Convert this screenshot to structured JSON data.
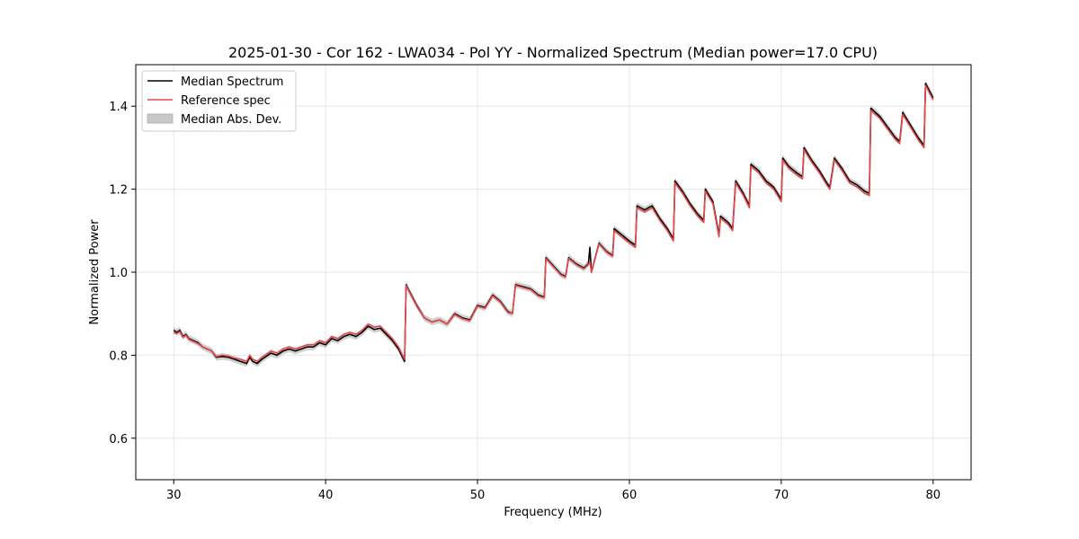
{
  "chart_data": {
    "type": "line",
    "title": "2025-01-30 - Cor 162 - LWA034 - Pol YY - Normalized Spectrum (Median power=17.0 CPU)",
    "xlabel": "Frequency (MHz)",
    "ylabel": "Normalized Power",
    "xlim": [
      27.5,
      82.5
    ],
    "ylim": [
      0.5,
      1.5
    ],
    "xticks": [
      30,
      40,
      50,
      60,
      70,
      80
    ],
    "yticks": [
      0.6,
      0.8,
      1.0,
      1.2,
      1.4
    ],
    "xtick_labels": [
      "30",
      "40",
      "50",
      "60",
      "70",
      "80"
    ],
    "ytick_labels": [
      "0.6",
      "0.8",
      "1.0",
      "1.2",
      "1.4"
    ],
    "grid": true,
    "legend_position": "top-left",
    "band_halfwidth": 0.008,
    "series": [
      {
        "name": "Median Spectrum",
        "color": "#000000",
        "x": [
          30.0,
          30.2,
          30.4,
          30.6,
          30.8,
          31.0,
          31.3,
          31.6,
          31.9,
          32.2,
          32.5,
          32.8,
          33.2,
          33.6,
          34.0,
          34.4,
          34.8,
          35.0,
          35.2,
          35.5,
          35.8,
          36.0,
          36.4,
          36.8,
          37.2,
          37.6,
          38.0,
          38.4,
          38.8,
          39.2,
          39.6,
          40.0,
          40.4,
          40.8,
          41.2,
          41.6,
          42.0,
          42.4,
          42.8,
          43.2,
          43.6,
          44.0,
          44.4,
          44.8,
          45.2,
          45.3,
          45.5,
          46.0,
          46.5,
          47.0,
          47.5,
          48.0,
          48.5,
          49.0,
          49.5,
          50.0,
          50.5,
          51.0,
          51.5,
          52.0,
          52.3,
          52.5,
          53.0,
          53.5,
          54.0,
          54.4,
          54.5,
          55.0,
          55.5,
          55.8,
          56.0,
          56.5,
          57.0,
          57.3,
          57.4,
          57.5,
          58.0,
          58.5,
          58.9,
          59.0,
          59.5,
          60.0,
          60.4,
          60.5,
          61.0,
          61.5,
          62.0,
          62.5,
          62.9,
          63.0,
          63.5,
          64.0,
          64.5,
          64.9,
          65.0,
          65.5,
          65.9,
          66.0,
          66.5,
          66.8,
          67.0,
          67.5,
          67.9,
          68.0,
          68.5,
          69.0,
          69.5,
          70.0,
          70.1,
          70.5,
          71.0,
          71.4,
          71.5,
          72.0,
          72.5,
          73.0,
          73.2,
          73.5,
          74.0,
          74.5,
          75.0,
          75.5,
          75.8,
          75.9,
          76.5,
          77.0,
          77.5,
          77.8,
          78.0,
          78.5,
          79.0,
          79.4,
          79.5,
          80.0
        ],
        "y": [
          0.86,
          0.855,
          0.86,
          0.845,
          0.85,
          0.84,
          0.835,
          0.83,
          0.82,
          0.815,
          0.81,
          0.795,
          0.797,
          0.795,
          0.79,
          0.785,
          0.78,
          0.795,
          0.785,
          0.78,
          0.79,
          0.795,
          0.805,
          0.8,
          0.81,
          0.815,
          0.81,
          0.815,
          0.82,
          0.82,
          0.83,
          0.825,
          0.84,
          0.835,
          0.845,
          0.85,
          0.845,
          0.855,
          0.87,
          0.862,
          0.865,
          0.85,
          0.835,
          0.815,
          0.785,
          0.97,
          0.955,
          0.92,
          0.89,
          0.88,
          0.885,
          0.875,
          0.9,
          0.89,
          0.885,
          0.92,
          0.915,
          0.945,
          0.93,
          0.905,
          0.9,
          0.97,
          0.965,
          0.96,
          0.945,
          0.94,
          1.035,
          1.015,
          0.995,
          0.99,
          1.035,
          1.02,
          1.01,
          1.02,
          1.06,
          1.0,
          1.07,
          1.05,
          1.04,
          1.105,
          1.09,
          1.075,
          1.065,
          1.16,
          1.15,
          1.16,
          1.13,
          1.105,
          1.08,
          1.22,
          1.195,
          1.165,
          1.14,
          1.125,
          1.2,
          1.17,
          1.09,
          1.135,
          1.12,
          1.105,
          1.22,
          1.19,
          1.16,
          1.26,
          1.245,
          1.22,
          1.205,
          1.175,
          1.275,
          1.255,
          1.24,
          1.23,
          1.3,
          1.27,
          1.245,
          1.215,
          1.205,
          1.275,
          1.25,
          1.22,
          1.21,
          1.195,
          1.19,
          1.395,
          1.375,
          1.35,
          1.325,
          1.315,
          1.385,
          1.355,
          1.325,
          1.305,
          1.455,
          1.42
        ]
      },
      {
        "name": "Reference spec",
        "color": "#e8484b",
        "x": [
          30.0,
          30.2,
          30.4,
          30.6,
          30.8,
          31.0,
          31.3,
          31.6,
          31.9,
          32.2,
          32.5,
          32.8,
          33.2,
          33.6,
          34.0,
          34.4,
          34.8,
          35.0,
          35.2,
          35.5,
          35.8,
          36.0,
          36.4,
          36.8,
          37.2,
          37.6,
          38.0,
          38.4,
          38.8,
          39.2,
          39.6,
          40.0,
          40.4,
          40.8,
          41.2,
          41.6,
          42.0,
          42.4,
          42.8,
          43.2,
          43.6,
          44.0,
          44.4,
          44.8,
          45.2,
          45.3,
          45.5,
          46.0,
          46.5,
          47.0,
          47.5,
          48.0,
          48.5,
          49.0,
          49.5,
          50.0,
          50.5,
          51.0,
          51.5,
          52.0,
          52.3,
          52.5,
          53.0,
          53.5,
          54.0,
          54.4,
          54.5,
          55.0,
          55.5,
          55.8,
          56.0,
          56.5,
          57.0,
          57.3,
          57.4,
          57.5,
          58.0,
          58.5,
          58.9,
          59.0,
          59.5,
          60.0,
          60.4,
          60.5,
          61.0,
          61.5,
          62.0,
          62.5,
          62.9,
          63.0,
          63.5,
          64.0,
          64.5,
          64.9,
          65.0,
          65.5,
          65.9,
          66.0,
          66.5,
          66.8,
          67.0,
          67.5,
          67.9,
          68.0,
          68.5,
          69.0,
          69.5,
          70.0,
          70.1,
          70.5,
          71.0,
          71.4,
          71.5,
          72.0,
          72.5,
          73.0,
          73.2,
          73.5,
          74.0,
          74.5,
          75.0,
          75.5,
          75.8,
          75.9,
          76.5,
          77.0,
          77.5,
          77.8,
          78.0,
          78.5,
          79.0,
          79.4,
          79.5,
          80.0
        ],
        "y": [
          0.855,
          0.852,
          0.857,
          0.843,
          0.848,
          0.838,
          0.833,
          0.828,
          0.82,
          0.815,
          0.81,
          0.797,
          0.8,
          0.798,
          0.793,
          0.79,
          0.785,
          0.8,
          0.79,
          0.785,
          0.795,
          0.8,
          0.81,
          0.805,
          0.815,
          0.82,
          0.815,
          0.82,
          0.825,
          0.825,
          0.835,
          0.83,
          0.845,
          0.84,
          0.85,
          0.855,
          0.85,
          0.86,
          0.875,
          0.868,
          0.87,
          0.855,
          0.84,
          0.82,
          0.79,
          0.968,
          0.953,
          0.918,
          0.89,
          0.88,
          0.885,
          0.875,
          0.898,
          0.888,
          0.883,
          0.918,
          0.913,
          0.943,
          0.928,
          0.903,
          0.9,
          0.968,
          0.963,
          0.958,
          0.943,
          0.938,
          1.033,
          1.013,
          0.993,
          0.988,
          1.033,
          1.018,
          1.008,
          1.018,
          1.025,
          1.0,
          1.068,
          1.048,
          1.038,
          1.1,
          1.085,
          1.07,
          1.06,
          1.155,
          1.145,
          1.155,
          1.125,
          1.1,
          1.075,
          1.215,
          1.19,
          1.16,
          1.135,
          1.12,
          1.195,
          1.165,
          1.085,
          1.13,
          1.115,
          1.1,
          1.215,
          1.185,
          1.155,
          1.255,
          1.24,
          1.215,
          1.2,
          1.17,
          1.27,
          1.25,
          1.235,
          1.225,
          1.295,
          1.265,
          1.24,
          1.21,
          1.2,
          1.27,
          1.245,
          1.215,
          1.205,
          1.19,
          1.185,
          1.39,
          1.37,
          1.345,
          1.32,
          1.31,
          1.38,
          1.35,
          1.32,
          1.3,
          1.45,
          1.415
        ]
      }
    ],
    "band": {
      "name": "Median Abs. Dev.",
      "color": "#c8c8c8"
    }
  }
}
